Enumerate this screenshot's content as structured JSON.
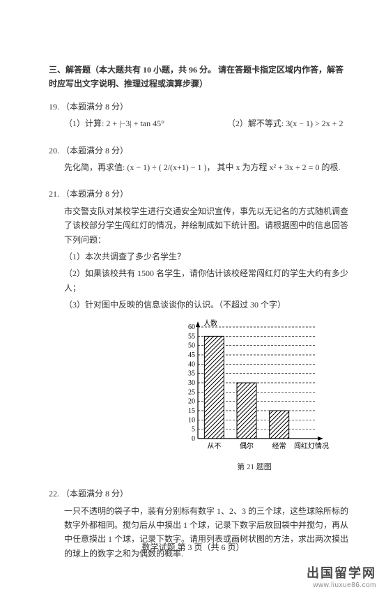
{
  "section_header": "三、解答题（本大题共有 10 小题，共 96 分。 请在答题卡指定区域内作答，解答时应写出文字说明、推理过程或演算步骤）",
  "q19": {
    "num": "19.",
    "points": "（本题满分 8 分）",
    "p1_label": "（1）计算:",
    "p1_expr": "2 + |−3| + tan 45°",
    "p2_label": "（2）解不等式:",
    "p2_expr": "3(x − 1) > 2x + 2"
  },
  "q20": {
    "num": "20.",
    "points": "（本题满分 8 分）",
    "lead": "先化简，再求值:",
    "expr": "(x − 1) ÷ ( 2/(x+1) − 1 )，",
    "tail": "其中 x 为方程 x² + 3x + 2 = 0 的根."
  },
  "q21": {
    "num": "21.",
    "points": "（本题满分 8 分）",
    "l1": "市交警支队对某校学生进行交通安全知识宣传，事先以无记名的方式随机调查了该校部分学生闯红灯的情况，并绘制成如下统计图。请根据图中的信息回答下列问题：",
    "l2": "（1）本次共调查了多少名学生？",
    "l3": "（2）如果该校共有 1500 名学生，请你估计该校经常闯红灯的学生大约有多少人；",
    "l4": "（3）针对图中反映的信息谈谈你的认识。（不超过 30 个字）",
    "chart": {
      "type": "bar",
      "y_label": "人数",
      "x_label": "闯红灯情况",
      "categories": [
        "从不",
        "偶尔",
        "经常"
      ],
      "values": [
        55,
        30,
        15
      ],
      "ylim": [
        0,
        60
      ],
      "ytick_step": 5,
      "bar_fill": "#ffffff",
      "bar_stroke": "#000000",
      "hatch": "diagonal",
      "grid_dash": "3,2",
      "bg": "#ffffff",
      "axis_color": "#000000",
      "text_color": "#000000",
      "label_fontsize": 10
    },
    "chart_caption": "第 21 题图"
  },
  "q22": {
    "num": "22.",
    "points": "（本题满分 8 分）",
    "body": "一只不透明的袋子中，装有分别标有数字 1、2、3 的三个球，这些球除所标的数字外都相同。搅匀后从中摸出 1 个球，记录下数字后放回袋中并搅匀，再从中任意摸出 1 个球，记录下数字。请用列表或画树状图的方法，求出两次摸出的球上的数字之和为偶数的概率."
  },
  "footer": "数学试题  第 3 页（共 6 页）",
  "brand_cn": "出国留学网",
  "brand_en": "www.liuxue86.com"
}
